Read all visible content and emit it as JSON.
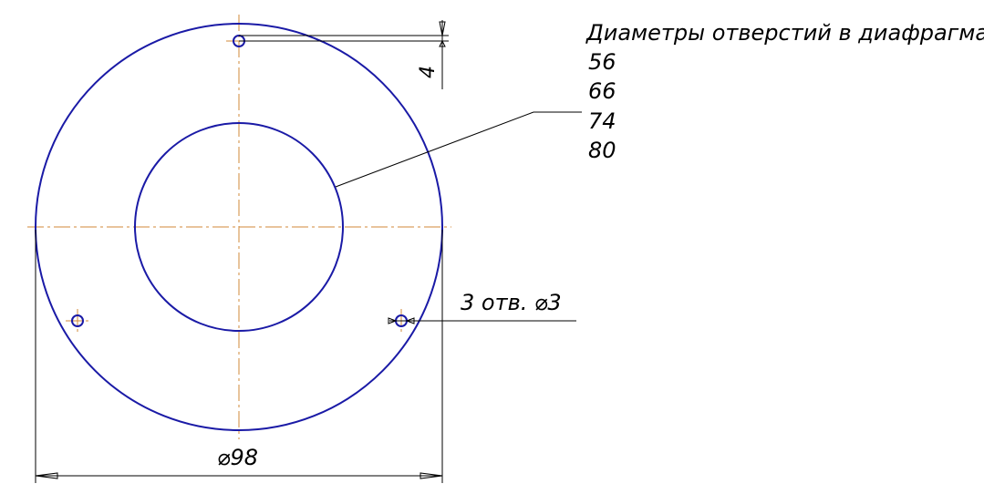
{
  "note": {
    "heading": "Диаметры отверстий в диафрагмах:",
    "values": [
      "56",
      "66",
      "74",
      "80"
    ]
  },
  "dimensions": {
    "outer_diameter": "⌀98",
    "holes": "3 отв. ⌀3",
    "offset": "4"
  },
  "colors": {
    "geometry": "#1a1aa6",
    "centerline": "#d08a3a",
    "dimension": "#000000"
  }
}
